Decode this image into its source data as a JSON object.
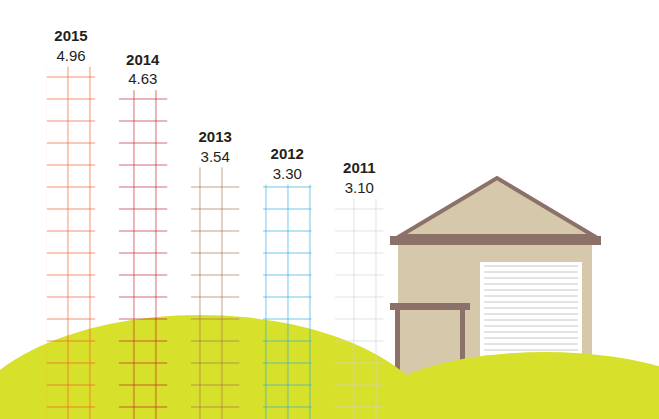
{
  "chart_data": {
    "type": "bar",
    "categories": [
      "2015",
      "2014",
      "2013",
      "2012",
      "2011"
    ],
    "values": [
      4.96,
      4.63,
      3.54,
      3.3,
      3.1
    ],
    "value_labels": [
      "4.96",
      "4.63",
      "3.54",
      "3.30",
      "3.10"
    ],
    "colors": [
      "#f15a29",
      "#be1e2d",
      "#a0714f",
      "#29aae1",
      "#d1d3d4"
    ],
    "ylim": [
      0,
      5.9
    ],
    "data_labels": true,
    "tick_labels": false,
    "grid": false
  }
}
